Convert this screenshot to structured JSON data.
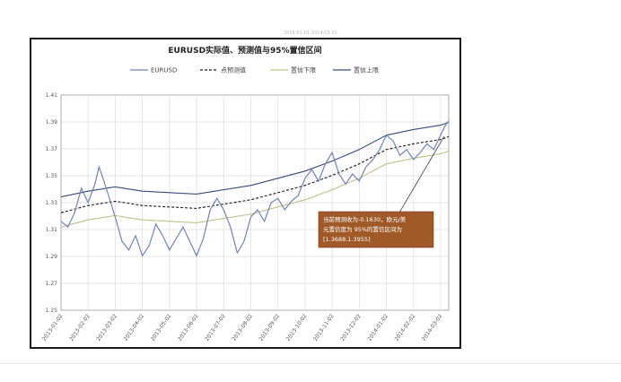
{
  "overlay": "2013-01-01 2014-03-31",
  "chart_data": {
    "type": "line",
    "title": "EURUSD实际值、预测值与95%置信区间",
    "legend": [
      "EURUSD",
      "点预测值",
      "置信下限",
      "置信上限"
    ],
    "legend_position": "top",
    "grid": true,
    "ylim": [
      1.26,
      1.41
    ],
    "y_ticks": [
      "1.41",
      "1.39",
      "1.37",
      "1.35",
      "1.33",
      "1.31",
      "1.29",
      "1.27",
      "1.25"
    ],
    "x_ticks": [
      "2013-01-02",
      "2013-02-02",
      "2013-03-02",
      "2013-04-02",
      "2013-05-02",
      "2013-06-02",
      "2013-07-02",
      "2013-08-02",
      "2013-09-02",
      "2013-10-02",
      "2013-11-02",
      "2013-12-02",
      "2014-01-02",
      "2014-02-02",
      "2014-03-02"
    ],
    "x_range": [
      0,
      14.3
    ],
    "series": [
      {
        "name": "EURUSD",
        "color": "#6f83b8",
        "values": [
          [
            0,
            1.322
          ],
          [
            0.25,
            1.318
          ],
          [
            0.5,
            1.328
          ],
          [
            0.75,
            1.345
          ],
          [
            1,
            1.335
          ],
          [
            1.25,
            1.348
          ],
          [
            1.4,
            1.36
          ],
          [
            1.55,
            1.352
          ],
          [
            1.75,
            1.34
          ],
          [
            2,
            1.325
          ],
          [
            2.25,
            1.308
          ],
          [
            2.5,
            1.302
          ],
          [
            2.75,
            1.312
          ],
          [
            3,
            1.298
          ],
          [
            3.25,
            1.305
          ],
          [
            3.5,
            1.32
          ],
          [
            3.75,
            1.312
          ],
          [
            4,
            1.302
          ],
          [
            4.25,
            1.31
          ],
          [
            4.5,
            1.318
          ],
          [
            4.75,
            1.308
          ],
          [
            5,
            1.298
          ],
          [
            5.25,
            1.31
          ],
          [
            5.5,
            1.33
          ],
          [
            5.75,
            1.338
          ],
          [
            6,
            1.33
          ],
          [
            6.25,
            1.318
          ],
          [
            6.5,
            1.3
          ],
          [
            6.75,
            1.308
          ],
          [
            7,
            1.325
          ],
          [
            7.25,
            1.33
          ],
          [
            7.5,
            1.322
          ],
          [
            7.75,
            1.335
          ],
          [
            8,
            1.338
          ],
          [
            8.25,
            1.33
          ],
          [
            8.5,
            1.336
          ],
          [
            8.75,
            1.34
          ],
          [
            9,
            1.352
          ],
          [
            9.25,
            1.358
          ],
          [
            9.5,
            1.35
          ],
          [
            9.75,
            1.362
          ],
          [
            10,
            1.37
          ],
          [
            10.25,
            1.355
          ],
          [
            10.5,
            1.348
          ],
          [
            10.75,
            1.355
          ],
          [
            11,
            1.35
          ],
          [
            11.25,
            1.36
          ],
          [
            11.5,
            1.365
          ],
          [
            11.75,
            1.372
          ],
          [
            12,
            1.382
          ],
          [
            12.25,
            1.378
          ],
          [
            12.5,
            1.368
          ],
          [
            12.75,
            1.372
          ],
          [
            13,
            1.365
          ],
          [
            13.25,
            1.37
          ],
          [
            13.5,
            1.376
          ],
          [
            13.75,
            1.372
          ],
          [
            14,
            1.382
          ],
          [
            14.15,
            1.388
          ],
          [
            14.3,
            1.392
          ]
        ]
      },
      {
        "name": "点预测值",
        "color": "#1a1a1a",
        "dashed": true,
        "values": [
          [
            0,
            1.328
          ],
          [
            1,
            1.333
          ],
          [
            2,
            1.336
          ],
          [
            3,
            1.333
          ],
          [
            4,
            1.332
          ],
          [
            5,
            1.331
          ],
          [
            6,
            1.334
          ],
          [
            7,
            1.337
          ],
          [
            8,
            1.342
          ],
          [
            9,
            1.347
          ],
          [
            10,
            1.354
          ],
          [
            11,
            1.362
          ],
          [
            12,
            1.372
          ],
          [
            13,
            1.376
          ],
          [
            14,
            1.379
          ],
          [
            14.3,
            1.381
          ]
        ]
      },
      {
        "name": "置信下限",
        "color": "#bcc38a",
        "values": [
          [
            0,
            1.318
          ],
          [
            1,
            1.323
          ],
          [
            2,
            1.326
          ],
          [
            3,
            1.323
          ],
          [
            4,
            1.322
          ],
          [
            5,
            1.321
          ],
          [
            6,
            1.324
          ],
          [
            7,
            1.327
          ],
          [
            8,
            1.332
          ],
          [
            9,
            1.337
          ],
          [
            10,
            1.344
          ],
          [
            11,
            1.352
          ],
          [
            12,
            1.362
          ],
          [
            13,
            1.366
          ],
          [
            14,
            1.369
          ],
          [
            14.3,
            1.371
          ]
        ]
      },
      {
        "name": "置信上限",
        "color": "#3a4a7a",
        "values": [
          [
            0,
            1.339
          ],
          [
            1,
            1.343
          ],
          [
            2,
            1.346
          ],
          [
            3,
            1.343
          ],
          [
            4,
            1.342
          ],
          [
            5,
            1.341
          ],
          [
            6,
            1.344
          ],
          [
            7,
            1.347
          ],
          [
            8,
            1.352
          ],
          [
            9,
            1.357
          ],
          [
            10,
            1.364
          ],
          [
            11,
            1.372
          ],
          [
            12,
            1.382
          ],
          [
            13,
            1.386
          ],
          [
            14,
            1.389
          ],
          [
            14.3,
            1.391
          ]
        ]
      }
    ],
    "annotation": {
      "lines": [
        "当前预测收为-0.1630，欧元/美",
        "元置信度为 95%的置信区间为",
        "[1.3688,1.3955]"
      ],
      "color": "#a05a28"
    }
  }
}
